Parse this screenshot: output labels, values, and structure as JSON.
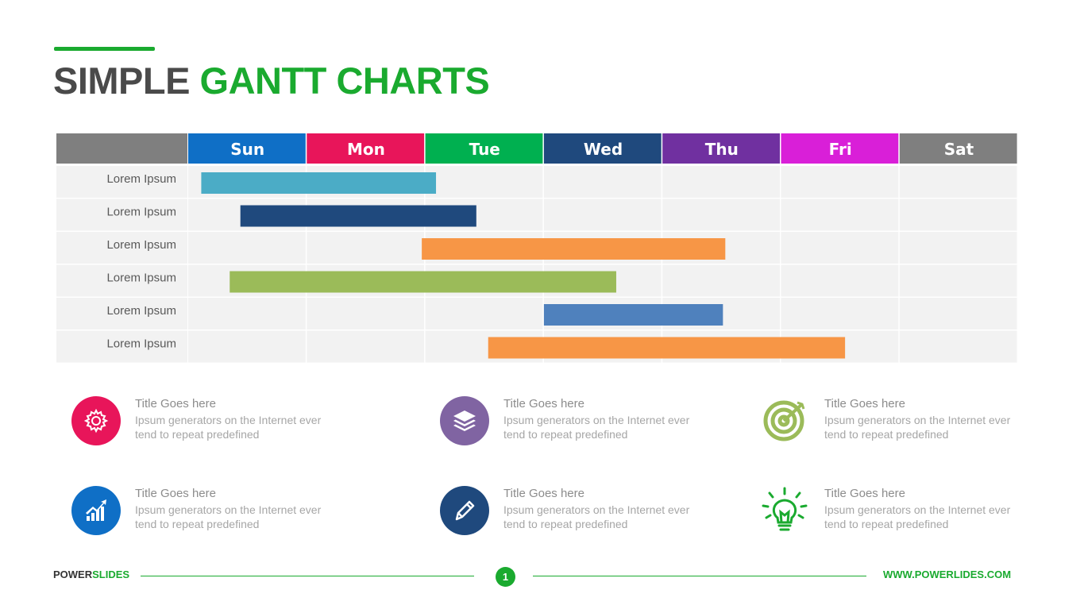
{
  "title": {
    "part1": "SIMPLE",
    "part2": "GANTT CHARTS"
  },
  "chart_data": {
    "type": "gantt",
    "categories": [
      "Sun",
      "Mon",
      "Tue",
      "Wed",
      "Thu",
      "Fri",
      "Sat"
    ],
    "header_colors": [
      "#0f6fc6",
      "#e8155a",
      "#00b050",
      "#1f497d",
      "#7030a0",
      "#d91fd8",
      "#7f7f7f"
    ],
    "tasks": [
      {
        "label": "Lorem Ipsum",
        "start": 0.11,
        "end": 2.09,
        "color": "#4bacc6"
      },
      {
        "label": "Lorem Ipsum",
        "start": 0.44,
        "end": 2.43,
        "color": "#1f497d"
      },
      {
        "label": "Lorem Ipsum",
        "start": 1.97,
        "end": 4.53,
        "color": "#f79646"
      },
      {
        "label": "Lorem Ipsum",
        "start": 0.35,
        "end": 3.61,
        "color": "#9bbb59"
      },
      {
        "label": "Lorem Ipsum",
        "start": 3.0,
        "end": 4.51,
        "color": "#4f81bd"
      },
      {
        "label": "Lorem Ipsum",
        "start": 2.53,
        "end": 5.54,
        "color": "#f79646"
      }
    ]
  },
  "features": [
    {
      "title": "Title Goes here",
      "desc": "Ipsum generators on the Internet ever tend to repeat predefined",
      "icon": "gear-icon",
      "color": "#e8155a"
    },
    {
      "title": "Title Goes here",
      "desc": "Ipsum generators on the Internet ever tend to repeat predefined",
      "icon": "layers-icon",
      "color": "#8064a2"
    },
    {
      "title": "Title Goes here",
      "desc": "Ipsum generators on the Internet ever tend to repeat predefined",
      "icon": "target-icon",
      "color": "#9bbb59"
    },
    {
      "title": "Title Goes here",
      "desc": "Ipsum generators on the Internet ever tend to repeat predefined",
      "icon": "growth-chart-icon",
      "color": "#0f6fc6"
    },
    {
      "title": "Title Goes here",
      "desc": "Ipsum generators on the Internet ever tend to repeat predefined",
      "icon": "pen-icon",
      "color": "#1f497d"
    },
    {
      "title": "Title Goes here",
      "desc": "Ipsum generators on the Internet ever tend to repeat predefined",
      "icon": "lightbulb-icon",
      "color": "#1aaa2f"
    }
  ],
  "footer": {
    "brand1": "POWER",
    "brand2": "SLIDES",
    "page": "1",
    "url": "WWW.POWERLIDES.COM"
  }
}
